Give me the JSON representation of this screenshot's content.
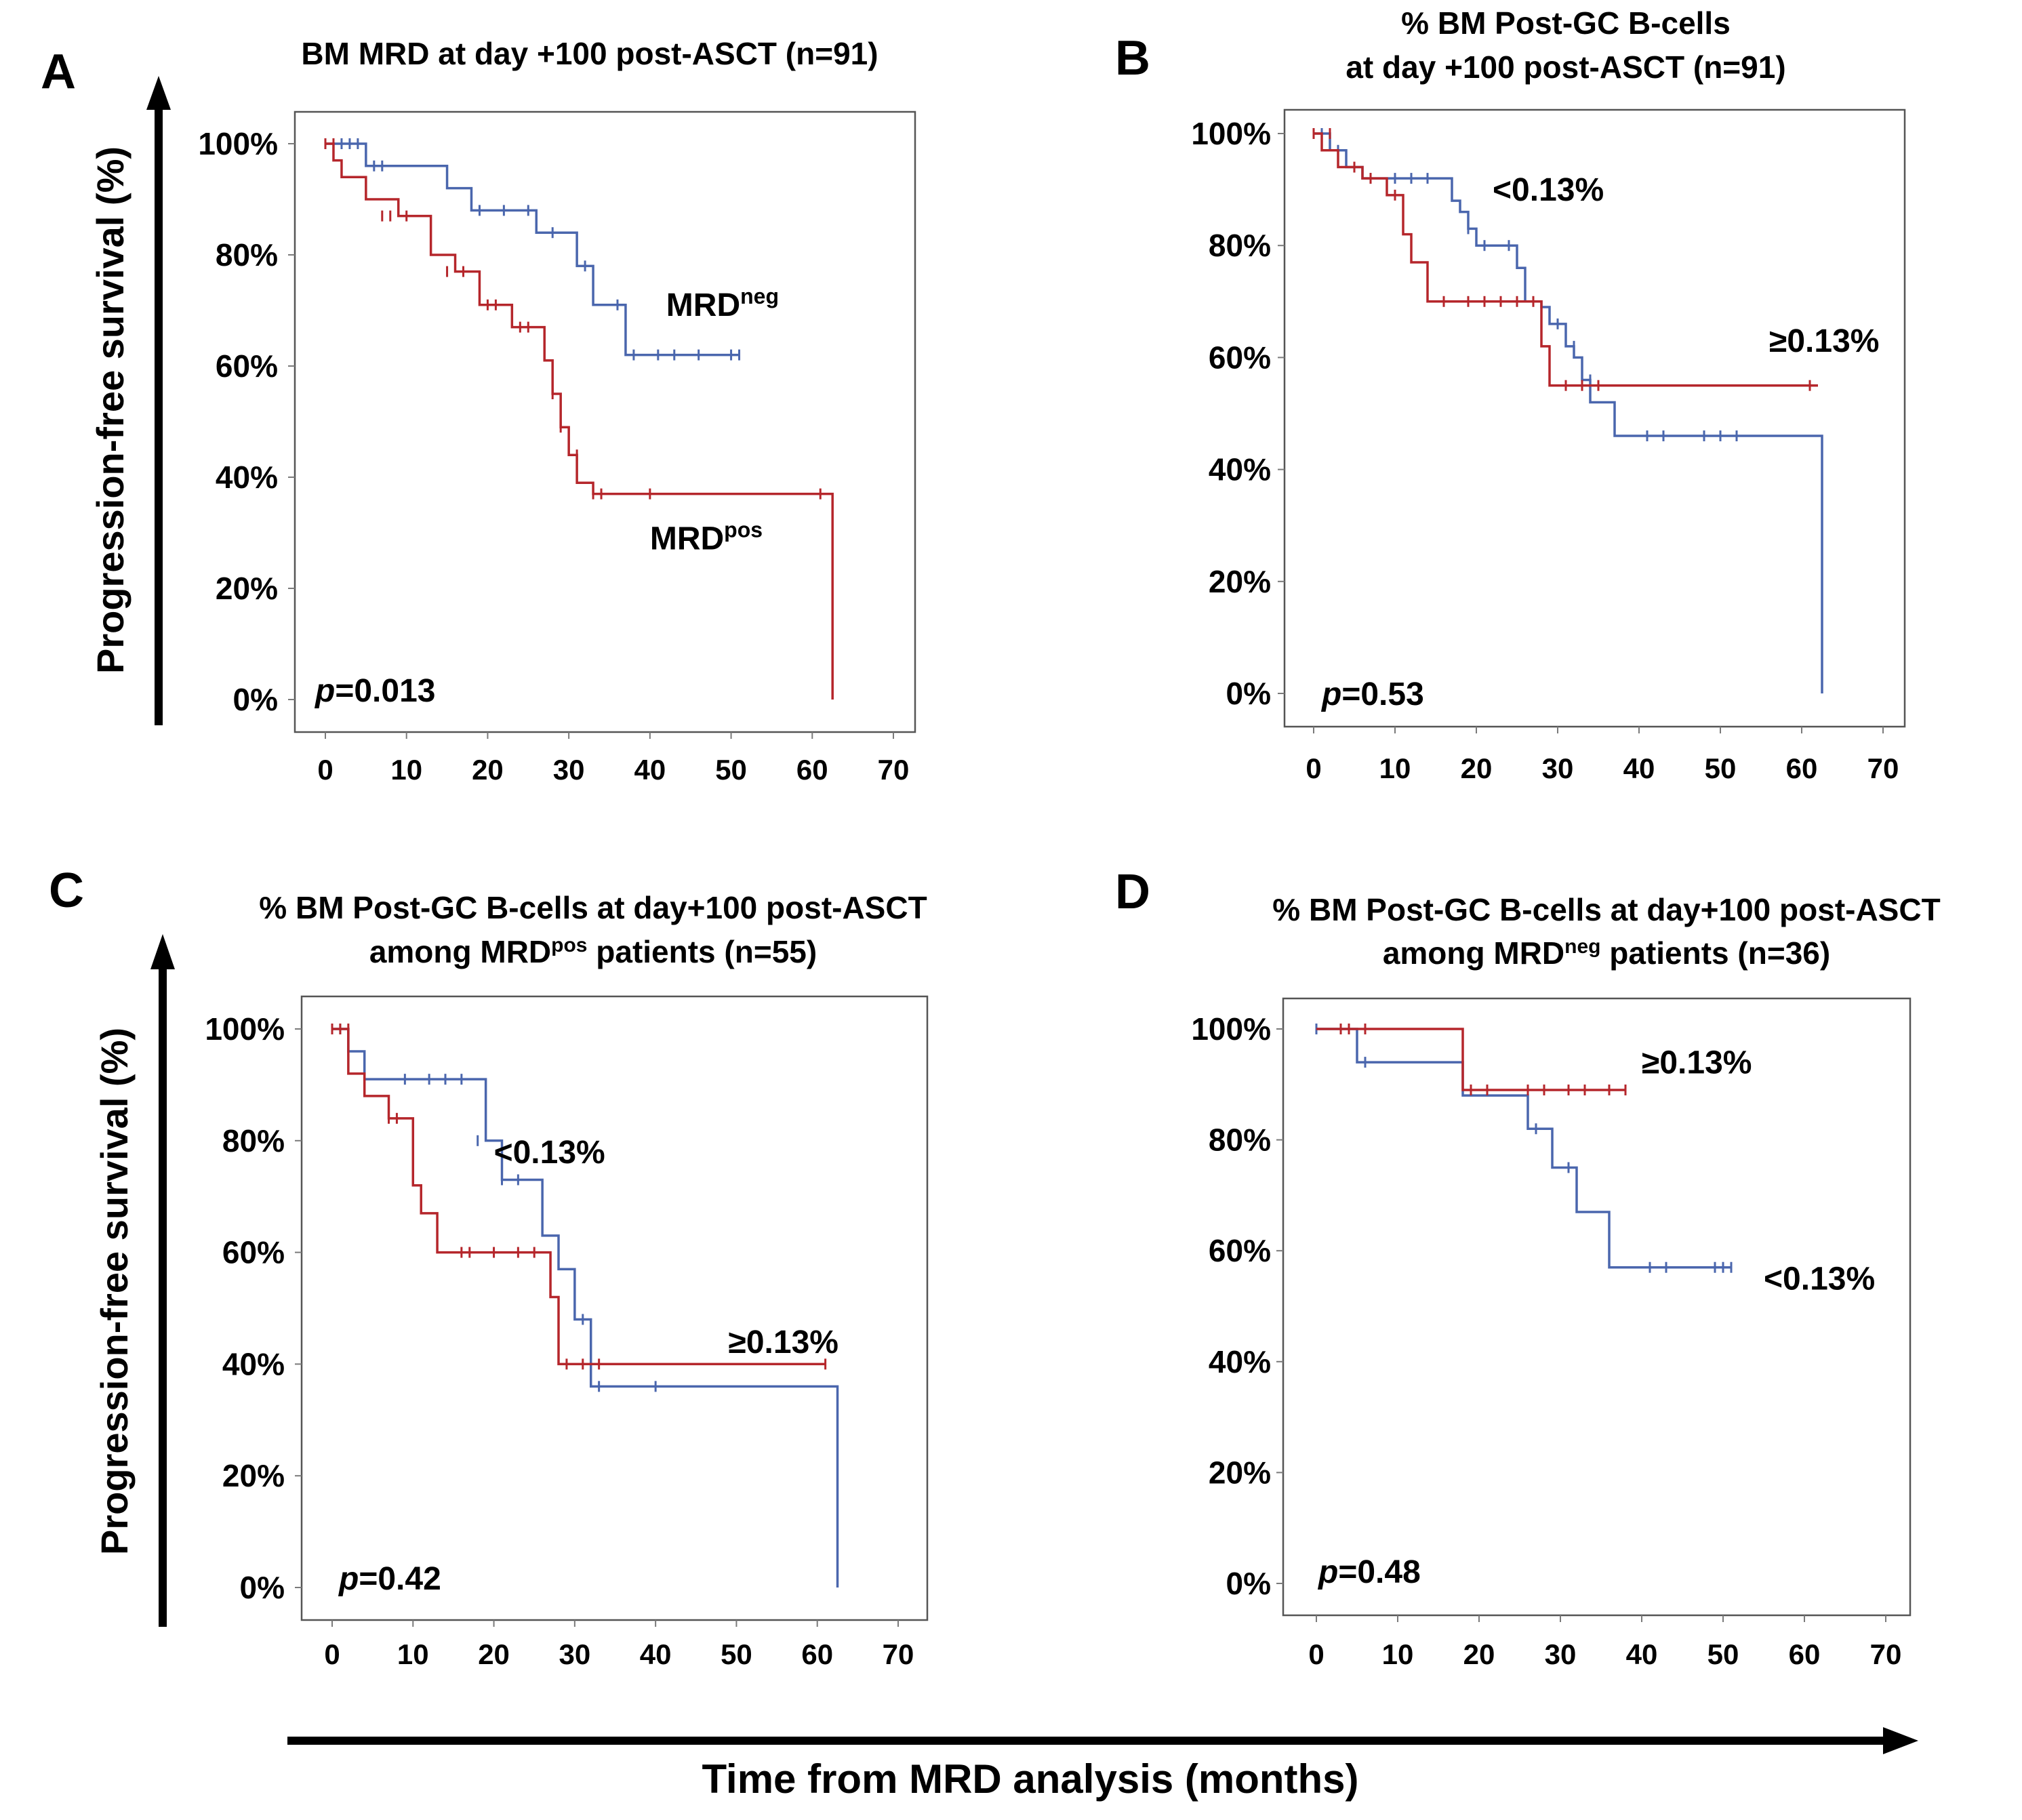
{
  "colors": {
    "red": "#b5262b",
    "blue": "#4a66ad",
    "axis": "#7a7a7a",
    "frame": "#555555",
    "text": "#000000"
  },
  "figure": {
    "ylabel_top": "Progression-free survival (%)",
    "ylabel_bottom": "Progression-free survival (%)",
    "xlabel": "Time from MRD analysis (months)"
  },
  "chart_data": [
    {
      "panel": "A",
      "type": "line",
      "title_lines": [
        {
          "runs": [
            {
              "t": "BM MRD at day +100 post-ASCT (n=91)"
            }
          ]
        }
      ],
      "xlim": [
        0,
        70
      ],
      "ylim": [
        0,
        100
      ],
      "xticks": [
        "0",
        "10",
        "20",
        "30",
        "40",
        "50",
        "60",
        "70"
      ],
      "yticks": [
        "0%",
        "20%",
        "40%",
        "60%",
        "80%",
        "100%"
      ],
      "p_value": "=0.013",
      "series": [
        {
          "name": "MRDneg",
          "color": "blue",
          "x": [
            0,
            2,
            5,
            15,
            18,
            26,
            31,
            33,
            37,
            38,
            51
          ],
          "y": [
            100,
            100,
            96,
            92,
            88,
            84,
            78,
            71,
            62,
            62,
            62
          ],
          "censored": [
            [
              2,
              100
            ],
            [
              3,
              100
            ],
            [
              4,
              100
            ],
            [
              6,
              96
            ],
            [
              7,
              96
            ],
            [
              19,
              88
            ],
            [
              22,
              88
            ],
            [
              25,
              88
            ],
            [
              28,
              84
            ],
            [
              32,
              78
            ],
            [
              36,
              71
            ],
            [
              38,
              62
            ],
            [
              41,
              62
            ],
            [
              43,
              62
            ],
            [
              46,
              62
            ],
            [
              50,
              62
            ],
            [
              51,
              62
            ]
          ]
        },
        {
          "name": "MRDpos",
          "color": "red",
          "x": [
            0,
            1,
            2,
            5,
            9,
            13,
            16,
            19,
            23,
            27,
            28,
            29,
            30,
            31,
            33,
            35,
            38,
            62,
            62.5
          ],
          "y": [
            100,
            97,
            94,
            90,
            87,
            80,
            77,
            71,
            67,
            61,
            55,
            49,
            44,
            39,
            37,
            37,
            37,
            37,
            0
          ],
          "censored": [
            [
              0,
              100
            ],
            [
              1,
              100
            ],
            [
              7,
              87
            ],
            [
              8,
              87
            ],
            [
              10,
              87
            ],
            [
              15,
              77
            ],
            [
              17,
              77
            ],
            [
              20,
              71
            ],
            [
              21,
              71
            ],
            [
              24,
              67
            ],
            [
              25,
              67
            ],
            [
              28,
              55
            ],
            [
              29,
              49
            ],
            [
              31,
              44
            ],
            [
              33,
              37
            ],
            [
              34,
              37
            ],
            [
              40,
              37
            ],
            [
              61,
              37
            ]
          ]
        }
      ],
      "annotations": [
        {
          "text": "MRD",
          "sup": "neg",
          "x": 42,
          "y": 69
        },
        {
          "text": "MRD",
          "sup": "pos",
          "x": 40,
          "y": 27
        }
      ]
    },
    {
      "panel": "B",
      "type": "line",
      "title_lines": [
        {
          "runs": [
            {
              "t": "% BM Post-GC B-cells"
            }
          ]
        },
        {
          "runs": [
            {
              "t": "at  day +100 post-ASCT (n=91)"
            }
          ]
        }
      ],
      "xlim": [
        0,
        70
      ],
      "ylim": [
        0,
        100
      ],
      "xticks": [
        "0",
        "10",
        "20",
        "30",
        "40",
        "50",
        "60",
        "70"
      ],
      "yticks": [
        "0%",
        "20%",
        "40%",
        "60%",
        "80%",
        "100%"
      ],
      "p_value": "=0.53",
      "series": [
        {
          "name": "<0.13%",
          "color": "blue",
          "x": [
            0,
            2,
            4,
            6,
            16,
            17,
            18,
            19,
            20,
            23,
            25,
            26,
            28,
            29,
            31,
            32,
            33,
            34,
            37,
            62,
            62.5
          ],
          "y": [
            100,
            97,
            94,
            92,
            92,
            88,
            86,
            83,
            80,
            80,
            76,
            70,
            69,
            66,
            62,
            60,
            56,
            52,
            46,
            46,
            0
          ],
          "censored": [
            [
              1,
              100
            ],
            [
              3,
              97
            ],
            [
              7,
              92
            ],
            [
              10,
              92
            ],
            [
              12,
              92
            ],
            [
              14,
              92
            ],
            [
              19,
              83
            ],
            [
              21,
              80
            ],
            [
              24,
              80
            ],
            [
              30,
              66
            ],
            [
              32,
              62
            ],
            [
              34,
              56
            ],
            [
              41,
              46
            ],
            [
              43,
              46
            ],
            [
              48,
              46
            ],
            [
              50,
              46
            ],
            [
              52,
              46
            ]
          ]
        },
        {
          "name": "≥0.13%",
          "color": "red",
          "x": [
            0,
            1,
            3,
            6,
            9,
            11,
            12,
            14,
            28,
            29,
            62
          ],
          "y": [
            100,
            97,
            94,
            92,
            89,
            82,
            77,
            70,
            62,
            55,
            55
          ],
          "censored": [
            [
              0,
              100
            ],
            [
              2,
              100
            ],
            [
              5,
              94
            ],
            [
              7,
              92
            ],
            [
              10,
              89
            ],
            [
              16,
              70
            ],
            [
              19,
              70
            ],
            [
              21,
              70
            ],
            [
              23,
              70
            ],
            [
              25,
              70
            ],
            [
              27,
              70
            ],
            [
              31,
              55
            ],
            [
              33,
              55
            ],
            [
              35,
              55
            ],
            [
              61,
              55
            ]
          ]
        }
      ],
      "annotations": [
        {
          "text": "<0.13%",
          "x": 22,
          "y": 88
        },
        {
          "text": "≥0.13%",
          "x": 56,
          "y": 61
        }
      ]
    },
    {
      "panel": "C",
      "type": "line",
      "title_lines": [
        {
          "runs": [
            {
              "t": "% BM Post-GC B-cells at day+100 post-ASCT"
            }
          ]
        },
        {
          "runs": [
            {
              "t": "among MRD"
            },
            {
              "t": "pos",
              "sup": true
            },
            {
              "t": " patients (n=55)"
            }
          ]
        }
      ],
      "xlim": [
        0,
        70
      ],
      "ylim": [
        0,
        100
      ],
      "xticks": [
        "0",
        "10",
        "20",
        "30",
        "40",
        "50",
        "60",
        "70"
      ],
      "yticks": [
        "0%",
        "20%",
        "40%",
        "60%",
        "80%",
        "100%"
      ],
      "p_value": "=0.42",
      "series": [
        {
          "name": "<0.13%",
          "color": "blue",
          "x": [
            0,
            2,
            4,
            17,
            19,
            21,
            24,
            26,
            28,
            30,
            32,
            62,
            62.5
          ],
          "y": [
            100,
            96,
            91,
            91,
            80,
            73,
            73,
            63,
            57,
            48,
            36,
            36,
            0
          ],
          "censored": [
            [
              1,
              100
            ],
            [
              2,
              96
            ],
            [
              9,
              91
            ],
            [
              12,
              91
            ],
            [
              14,
              91
            ],
            [
              16,
              91
            ],
            [
              18,
              80
            ],
            [
              21,
              73
            ],
            [
              23,
              73
            ],
            [
              31,
              48
            ],
            [
              33,
              36
            ],
            [
              40,
              36
            ]
          ]
        },
        {
          "name": "≥0.13%",
          "color": "red",
          "x": [
            0,
            2,
            4,
            7,
            10,
            11,
            13,
            27,
            28,
            61
          ],
          "y": [
            100,
            92,
            88,
            84,
            72,
            67,
            60,
            52,
            40,
            40
          ],
          "censored": [
            [
              0,
              100
            ],
            [
              1,
              100
            ],
            [
              2,
              100
            ],
            [
              7,
              84
            ],
            [
              8,
              84
            ],
            [
              16,
              60
            ],
            [
              17,
              60
            ],
            [
              20,
              60
            ],
            [
              23,
              60
            ],
            [
              25,
              60
            ],
            [
              29,
              40
            ],
            [
              31,
              40
            ],
            [
              33,
              40
            ],
            [
              61,
              40
            ]
          ]
        }
      ],
      "annotations": [
        {
          "text": "<0.13%",
          "x": 20,
          "y": 76
        },
        {
          "text": "≥0.13%",
          "x": 49,
          "y": 42
        }
      ]
    },
    {
      "panel": "D",
      "type": "line",
      "title_lines": [
        {
          "runs": [
            {
              "t": "% BM Post-GC B-cells at day+100 post-ASCT"
            }
          ]
        },
        {
          "runs": [
            {
              "t": "among MRD"
            },
            {
              "t": "neg",
              "sup": true
            },
            {
              "t": " patients (n=36)"
            }
          ]
        }
      ],
      "xlim": [
        0,
        70
      ],
      "ylim": [
        0,
        100
      ],
      "xticks": [
        "0",
        "10",
        "20",
        "30",
        "40",
        "50",
        "60",
        "70"
      ],
      "yticks": [
        "0%",
        "20%",
        "40%",
        "60%",
        "80%",
        "100%"
      ],
      "p_value": "=0.48",
      "series": [
        {
          "name": "<0.13%",
          "color": "blue",
          "x": [
            0,
            5,
            15,
            18,
            26,
            29,
            32,
            36,
            51
          ],
          "y": [
            100,
            94,
            94,
            88,
            82,
            75,
            67,
            57,
            57
          ],
          "censored": [
            [
              0,
              100
            ],
            [
              6,
              94
            ],
            [
              27,
              82
            ],
            [
              31,
              75
            ],
            [
              41,
              57
            ],
            [
              43,
              57
            ],
            [
              49,
              57
            ],
            [
              50,
              57
            ],
            [
              51,
              57
            ]
          ]
        },
        {
          "name": "≥0.13%",
          "color": "red",
          "x": [
            0,
            15,
            18,
            38
          ],
          "y": [
            100,
            100,
            89,
            89
          ],
          "censored": [
            [
              3,
              100
            ],
            [
              4,
              100
            ],
            [
              6,
              100
            ],
            [
              19,
              89
            ],
            [
              21,
              89
            ],
            [
              26,
              89
            ],
            [
              28,
              89
            ],
            [
              31,
              89
            ],
            [
              33,
              89
            ],
            [
              36,
              89
            ],
            [
              38,
              89
            ]
          ]
        }
      ],
      "annotations": [
        {
          "text": "≥0.13%",
          "x": 40,
          "y": 92
        },
        {
          "text": "<0.13%",
          "x": 55,
          "y": 53
        }
      ]
    }
  ]
}
